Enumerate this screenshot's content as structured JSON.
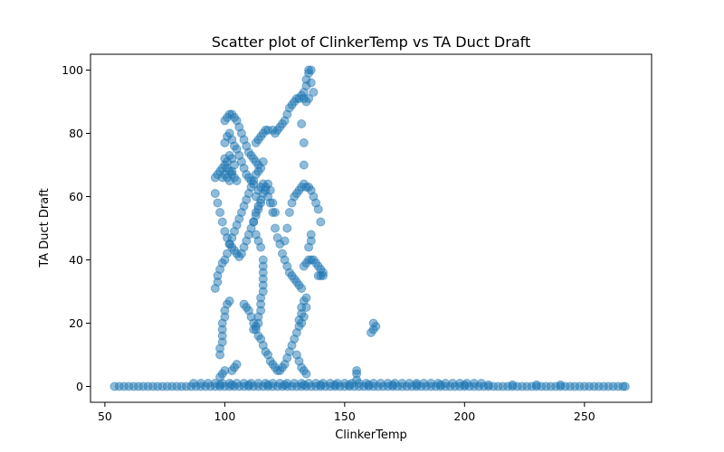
{
  "chart_data": {
    "type": "scatter",
    "title": "Scatter plot of ClinkerTemp vs TA Duct Draft",
    "xlabel": "ClinkerTemp",
    "ylabel": "TA Duct Draft",
    "xlim": [
      44,
      278
    ],
    "ylim": [
      -5,
      105
    ],
    "xticks": [
      50,
      100,
      150,
      200,
      250
    ],
    "yticks": [
      0,
      20,
      40,
      60,
      80,
      100
    ],
    "grid": false,
    "marker_color": "#1f77b4",
    "marker_alpha": 0.5,
    "points": [
      [
        54,
        0
      ],
      [
        56,
        0
      ],
      [
        58,
        0
      ],
      [
        60,
        0
      ],
      [
        62,
        0
      ],
      [
        64,
        0
      ],
      [
        66,
        0
      ],
      [
        68,
        0
      ],
      [
        70,
        0
      ],
      [
        72,
        0
      ],
      [
        74,
        0
      ],
      [
        76,
        0
      ],
      [
        78,
        0
      ],
      [
        80,
        0
      ],
      [
        82,
        0
      ],
      [
        84,
        0
      ],
      [
        86,
        0
      ],
      [
        88,
        0
      ],
      [
        90,
        0
      ],
      [
        92,
        0
      ],
      [
        94,
        0
      ],
      [
        96,
        0
      ],
      [
        98,
        0
      ],
      [
        100,
        0
      ],
      [
        102,
        0
      ],
      [
        104,
        0
      ],
      [
        106,
        0
      ],
      [
        108,
        0
      ],
      [
        110,
        0
      ],
      [
        112,
        0
      ],
      [
        114,
        0
      ],
      [
        116,
        0
      ],
      [
        118,
        0
      ],
      [
        120,
        0
      ],
      [
        122,
        0
      ],
      [
        124,
        0
      ],
      [
        126,
        0
      ],
      [
        128,
        0
      ],
      [
        130,
        0
      ],
      [
        132,
        0
      ],
      [
        134,
        0
      ],
      [
        136,
        0
      ],
      [
        138,
        0
      ],
      [
        140,
        0
      ],
      [
        142,
        0
      ],
      [
        144,
        0
      ],
      [
        146,
        0
      ],
      [
        148,
        0
      ],
      [
        150,
        0
      ],
      [
        152,
        0
      ],
      [
        154,
        0
      ],
      [
        156,
        0
      ],
      [
        158,
        0
      ],
      [
        160,
        0
      ],
      [
        162,
        0
      ],
      [
        164,
        0
      ],
      [
        166,
        0
      ],
      [
        168,
        0
      ],
      [
        170,
        0
      ],
      [
        172,
        0
      ],
      [
        174,
        0
      ],
      [
        176,
        0
      ],
      [
        178,
        0
      ],
      [
        180,
        0
      ],
      [
        182,
        0
      ],
      [
        184,
        0
      ],
      [
        186,
        0
      ],
      [
        188,
        0
      ],
      [
        190,
        0
      ],
      [
        192,
        0
      ],
      [
        194,
        0
      ],
      [
        196,
        0
      ],
      [
        198,
        0
      ],
      [
        200,
        0
      ],
      [
        202,
        0
      ],
      [
        204,
        0
      ],
      [
        206,
        0
      ],
      [
        208,
        0
      ],
      [
        210,
        0
      ],
      [
        212,
        0
      ],
      [
        214,
        0
      ],
      [
        216,
        0
      ],
      [
        218,
        0
      ],
      [
        220,
        0
      ],
      [
        222,
        0
      ],
      [
        224,
        0
      ],
      [
        226,
        0
      ],
      [
        228,
        0
      ],
      [
        230,
        0
      ],
      [
        232,
        0
      ],
      [
        234,
        0
      ],
      [
        236,
        0
      ],
      [
        238,
        0
      ],
      [
        240,
        0
      ],
      [
        242,
        0
      ],
      [
        244,
        0
      ],
      [
        246,
        0
      ],
      [
        248,
        0
      ],
      [
        250,
        0
      ],
      [
        252,
        0
      ],
      [
        254,
        0
      ],
      [
        256,
        0
      ],
      [
        258,
        0
      ],
      [
        260,
        0
      ],
      [
        262,
        0
      ],
      [
        264,
        0
      ],
      [
        266,
        0
      ],
      [
        267,
        0
      ],
      [
        87,
        1
      ],
      [
        90,
        1
      ],
      [
        93,
        1
      ],
      [
        96,
        1
      ],
      [
        99,
        1
      ],
      [
        102,
        1
      ],
      [
        105,
        1
      ],
      [
        108,
        1
      ],
      [
        111,
        1
      ],
      [
        114,
        1
      ],
      [
        117,
        1
      ],
      [
        120,
        1
      ],
      [
        123,
        1
      ],
      [
        126,
        1
      ],
      [
        129,
        1
      ],
      [
        132,
        1
      ],
      [
        135,
        1
      ],
      [
        138,
        1
      ],
      [
        141,
        1
      ],
      [
        144,
        1
      ],
      [
        147,
        1
      ],
      [
        150,
        1
      ],
      [
        153,
        1
      ],
      [
        156,
        1
      ],
      [
        159,
        1
      ],
      [
        162,
        1
      ],
      [
        165,
        1
      ],
      [
        168,
        1
      ],
      [
        171,
        1
      ],
      [
        174,
        1
      ],
      [
        177,
        1
      ],
      [
        180,
        1
      ],
      [
        183,
        1
      ],
      [
        186,
        1
      ],
      [
        189,
        1
      ],
      [
        192,
        1
      ],
      [
        195,
        1
      ],
      [
        198,
        1
      ],
      [
        201,
        1
      ],
      [
        204,
        1
      ],
      [
        207,
        1
      ],
      [
        98,
        0.5
      ],
      [
        103,
        0.5
      ],
      [
        110,
        0.5
      ],
      [
        118,
        0.5
      ],
      [
        125,
        0.5
      ],
      [
        133,
        0.5
      ],
      [
        140,
        0.5
      ],
      [
        146,
        0.5
      ],
      [
        152,
        0.5
      ],
      [
        160,
        0.5
      ],
      [
        170,
        0.5
      ],
      [
        180,
        0.5
      ],
      [
        190,
        0.5
      ],
      [
        200,
        0.5
      ],
      [
        210,
        0.5
      ],
      [
        220,
        0.5
      ],
      [
        230,
        0.5
      ],
      [
        240,
        0.5
      ],
      [
        96,
        31
      ],
      [
        97,
        33
      ],
      [
        97,
        35
      ],
      [
        98,
        37
      ],
      [
        99,
        39
      ],
      [
        100,
        40
      ],
      [
        101,
        42
      ],
      [
        102,
        45
      ],
      [
        103,
        47
      ],
      [
        104,
        49
      ],
      [
        105,
        51
      ],
      [
        106,
        53
      ],
      [
        107,
        55
      ],
      [
        108,
        57
      ],
      [
        109,
        59
      ],
      [
        110,
        61
      ],
      [
        111,
        63
      ],
      [
        112,
        65
      ],
      [
        113,
        67
      ],
      [
        114,
        68
      ],
      [
        115,
        69
      ],
      [
        116,
        71
      ],
      [
        96,
        61
      ],
      [
        97,
        58
      ],
      [
        98,
        55
      ],
      [
        99,
        52
      ],
      [
        100,
        49
      ],
      [
        101,
        47
      ],
      [
        102,
        45
      ],
      [
        103,
        44
      ],
      [
        104,
        43
      ],
      [
        105,
        42
      ],
      [
        106,
        41
      ],
      [
        107,
        42
      ],
      [
        108,
        44
      ],
      [
        109,
        46
      ],
      [
        110,
        48
      ],
      [
        111,
        50
      ],
      [
        112,
        52
      ],
      [
        113,
        54
      ],
      [
        114,
        56
      ],
      [
        115,
        58
      ],
      [
        96,
        66
      ],
      [
        97,
        67
      ],
      [
        98,
        68
      ],
      [
        99,
        69
      ],
      [
        100,
        70
      ],
      [
        101,
        69
      ],
      [
        102,
        68
      ],
      [
        103,
        67
      ],
      [
        104,
        66
      ],
      [
        105,
        65
      ],
      [
        99,
        66
      ],
      [
        100,
        67
      ],
      [
        101,
        66
      ],
      [
        102,
        65
      ],
      [
        103,
        68
      ],
      [
        104,
        70
      ],
      [
        103,
        72
      ],
      [
        102,
        73
      ],
      [
        101,
        71
      ],
      [
        100,
        72
      ],
      [
        100,
        84
      ],
      [
        101,
        85
      ],
      [
        102,
        86
      ],
      [
        103,
        86
      ],
      [
        104,
        85
      ],
      [
        105,
        84
      ],
      [
        106,
        82
      ],
      [
        107,
        80
      ],
      [
        108,
        78
      ],
      [
        109,
        76
      ],
      [
        110,
        74
      ],
      [
        111,
        73
      ],
      [
        112,
        72
      ],
      [
        113,
        71
      ],
      [
        114,
        70
      ],
      [
        100,
        77
      ],
      [
        101,
        79
      ],
      [
        102,
        80
      ],
      [
        103,
        78
      ],
      [
        104,
        76
      ],
      [
        105,
        75
      ],
      [
        106,
        73
      ],
      [
        107,
        71
      ],
      [
        108,
        69
      ],
      [
        109,
        67
      ],
      [
        110,
        66
      ],
      [
        111,
        65
      ],
      [
        112,
        64
      ],
      [
        113,
        77
      ],
      [
        114,
        78
      ],
      [
        115,
        79
      ],
      [
        116,
        80
      ],
      [
        117,
        81
      ],
      [
        118,
        81
      ],
      [
        120,
        81
      ],
      [
        121,
        80
      ],
      [
        122,
        81
      ],
      [
        123,
        82
      ],
      [
        124,
        83
      ],
      [
        125,
        84
      ],
      [
        126,
        86
      ],
      [
        127,
        88
      ],
      [
        128,
        89
      ],
      [
        129,
        90
      ],
      [
        130,
        91
      ],
      [
        131,
        91
      ],
      [
        132,
        92
      ],
      [
        133,
        93
      ],
      [
        134,
        95
      ],
      [
        134,
        97
      ],
      [
        135,
        99
      ],
      [
        135,
        100
      ],
      [
        136,
        100
      ],
      [
        136,
        96
      ],
      [
        137,
        93
      ],
      [
        135,
        91
      ],
      [
        134,
        90
      ],
      [
        133,
        91
      ],
      [
        113,
        60
      ],
      [
        114,
        62
      ],
      [
        115,
        63
      ],
      [
        116,
        64
      ],
      [
        117,
        62
      ],
      [
        118,
        60
      ],
      [
        119,
        58
      ],
      [
        120,
        55
      ],
      [
        121,
        50
      ],
      [
        122,
        47
      ],
      [
        123,
        45
      ],
      [
        124,
        42
      ],
      [
        125,
        40
      ],
      [
        126,
        38
      ],
      [
        127,
        36
      ],
      [
        128,
        35
      ],
      [
        129,
        34
      ],
      [
        130,
        33
      ],
      [
        131,
        32
      ],
      [
        132,
        31
      ],
      [
        112,
        52
      ],
      [
        113,
        55
      ],
      [
        114,
        57
      ],
      [
        115,
        59
      ],
      [
        116,
        61
      ],
      [
        117,
        63
      ],
      [
        118,
        64
      ],
      [
        119,
        62
      ],
      [
        120,
        58
      ],
      [
        121,
        55
      ],
      [
        113,
        48
      ],
      [
        114,
        46
      ],
      [
        115,
        44
      ],
      [
        116,
        40
      ],
      [
        116,
        38
      ],
      [
        116,
        36
      ],
      [
        116,
        34
      ],
      [
        116,
        32
      ],
      [
        116,
        30
      ],
      [
        115,
        28
      ],
      [
        115,
        26
      ],
      [
        115,
        24
      ],
      [
        114,
        22
      ],
      [
        114,
        20
      ],
      [
        113,
        19
      ],
      [
        112,
        18
      ],
      [
        98,
        10
      ],
      [
        98,
        12
      ],
      [
        99,
        14
      ],
      [
        99,
        16
      ],
      [
        99,
        18
      ],
      [
        99,
        20
      ],
      [
        100,
        22
      ],
      [
        100,
        24
      ],
      [
        101,
        26
      ],
      [
        102,
        27
      ],
      [
        103,
        5
      ],
      [
        104,
        6
      ],
      [
        105,
        7
      ],
      [
        100,
        5
      ],
      [
        99,
        4
      ],
      [
        98,
        3
      ],
      [
        108,
        26
      ],
      [
        109,
        25
      ],
      [
        110,
        24
      ],
      [
        111,
        22
      ],
      [
        112,
        20
      ],
      [
        113,
        18
      ],
      [
        114,
        16
      ],
      [
        115,
        15
      ],
      [
        116,
        13
      ],
      [
        117,
        11
      ],
      [
        118,
        10
      ],
      [
        119,
        8
      ],
      [
        120,
        7
      ],
      [
        121,
        6
      ],
      [
        122,
        5
      ],
      [
        123,
        5
      ],
      [
        124,
        6
      ],
      [
        125,
        7
      ],
      [
        126,
        9
      ],
      [
        127,
        11
      ],
      [
        128,
        13
      ],
      [
        129,
        15
      ],
      [
        130,
        17
      ],
      [
        131,
        19
      ],
      [
        131,
        21
      ],
      [
        132,
        23
      ],
      [
        132,
        25
      ],
      [
        133,
        27
      ],
      [
        134,
        28
      ],
      [
        134,
        25
      ],
      [
        133,
        22
      ],
      [
        132,
        20
      ],
      [
        130,
        10
      ],
      [
        131,
        8
      ],
      [
        132,
        6
      ],
      [
        133,
        5
      ],
      [
        134,
        4
      ],
      [
        125,
        46
      ],
      [
        126,
        50
      ],
      [
        127,
        55
      ],
      [
        128,
        58
      ],
      [
        129,
        60
      ],
      [
        130,
        61
      ],
      [
        131,
        62
      ],
      [
        132,
        63
      ],
      [
        133,
        64
      ],
      [
        134,
        63
      ],
      [
        135,
        63
      ],
      [
        136,
        62
      ],
      [
        137,
        60
      ],
      [
        138,
        58
      ],
      [
        139,
        56
      ],
      [
        140,
        52
      ],
      [
        136,
        48
      ],
      [
        136,
        46
      ],
      [
        135,
        44
      ],
      [
        133,
        38
      ],
      [
        134,
        39
      ],
      [
        135,
        40
      ],
      [
        136,
        40
      ],
      [
        137,
        40
      ],
      [
        138,
        39
      ],
      [
        139,
        38
      ],
      [
        140,
        37
      ],
      [
        141,
        36
      ],
      [
        141,
        35
      ],
      [
        140,
        35
      ],
      [
        139,
        35
      ],
      [
        133,
        77
      ],
      [
        133,
        70
      ],
      [
        132,
        83
      ],
      [
        155,
        5
      ],
      [
        155,
        4
      ],
      [
        155,
        2
      ],
      [
        161,
        17
      ],
      [
        162,
        18
      ],
      [
        162,
        20
      ],
      [
        163,
        19
      ]
    ]
  }
}
